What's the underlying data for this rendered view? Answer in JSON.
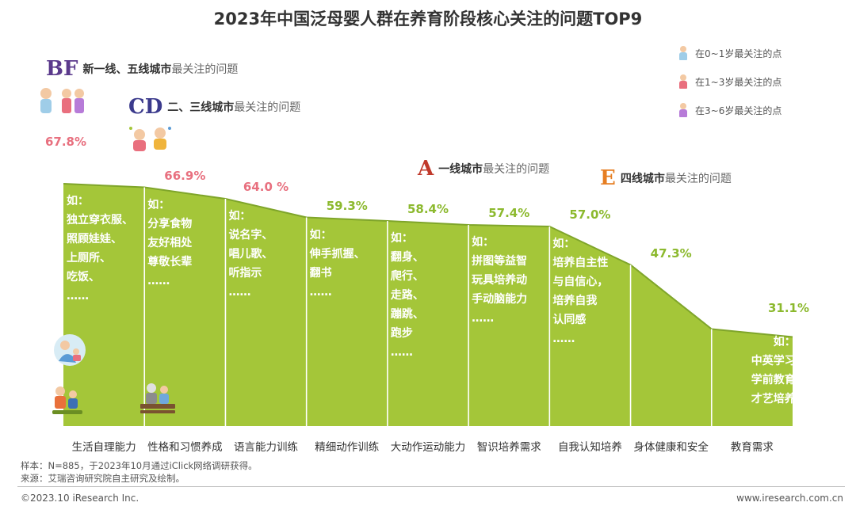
{
  "title": "2023年中国泛母婴人群在养育阶段核心关注的问题TOP9",
  "tiers": [
    {
      "badge": "BF",
      "strong": "新一线、五线城市",
      "rest": "最关注的问题",
      "color": "#5b3a8c"
    },
    {
      "badge": "CD",
      "strong": "二、三线城市",
      "rest": "最关注的问题",
      "color": "#3b3a8c"
    },
    {
      "badge": "A",
      "strong": "一线城市",
      "rest": "最关注的问题",
      "color": "#c0392b"
    },
    {
      "badge": "E",
      "strong": "四线城市",
      "rest": "最关注的问题",
      "color": "#e67e22"
    }
  ],
  "legend": [
    {
      "text": "在0~1岁最关注的点"
    },
    {
      "text": "在1~3岁最关注的点"
    },
    {
      "text": "在3~6岁最关注的点"
    }
  ],
  "chart_data": {
    "type": "area",
    "title": "2023年中国泛母婴人群在养育阶段核心关注的问题TOP9",
    "categories": [
      "生活自理能力",
      "性格和习惯养成",
      "语言能力训练",
      "精细动作训练",
      "大动作运动能力",
      "智识培养需求",
      "自我认知培养",
      "身体健康和安全",
      "教育需求"
    ],
    "values": [
      67.8,
      66.9,
      64.0,
      59.3,
      58.4,
      57.4,
      57.0,
      47.3,
      31.1
    ],
    "labels": [
      "67.8%",
      "66.9%",
      "64.0 %",
      "59.3%",
      "58.4%",
      "57.4%",
      "57.0%",
      "47.3%",
      "31.1%"
    ],
    "ylim": [
      0,
      100
    ],
    "fill_color": "#a4c639",
    "line_color": "#7fa52a",
    "label_color_top3": "#e8707f",
    "label_color_rest": "#8cb92e",
    "examples": [
      [
        "如：",
        "独立穿衣服、",
        "照顾娃娃、",
        "上厕所、",
        "吃饭、",
        "……"
      ],
      [
        "如：",
        "分享食物",
        "友好相处",
        "尊敬长辈",
        "……"
      ],
      [
        "如：",
        "说名字、",
        "唱儿歌、",
        "听指示",
        "……"
      ],
      [
        "如：",
        "伸手抓握、",
        "翻书",
        "……"
      ],
      [
        "如：",
        "翻身、",
        "爬行、",
        "走路、",
        "蹦跳、",
        "跑步",
        "……"
      ],
      [
        "如：",
        "拼图等益智",
        "玩具培养动",
        "手动脑能力",
        "……"
      ],
      [
        "如：",
        "培养自主性",
        "与自信心，",
        "培养自我",
        "认同感",
        "……"
      ],
      [],
      [
        "如：",
        "中英学习",
        "学前教育",
        "才艺培养"
      ]
    ]
  },
  "notes": {
    "sample": "样本：N=885，于2023年10月通过iClick网络调研获得。",
    "source": "来源：艾瑞咨询研究院自主研究及绘制。"
  },
  "footer": {
    "left": "©2023.10 iResearch Inc.",
    "right": "www.iresearch.com.cn"
  }
}
